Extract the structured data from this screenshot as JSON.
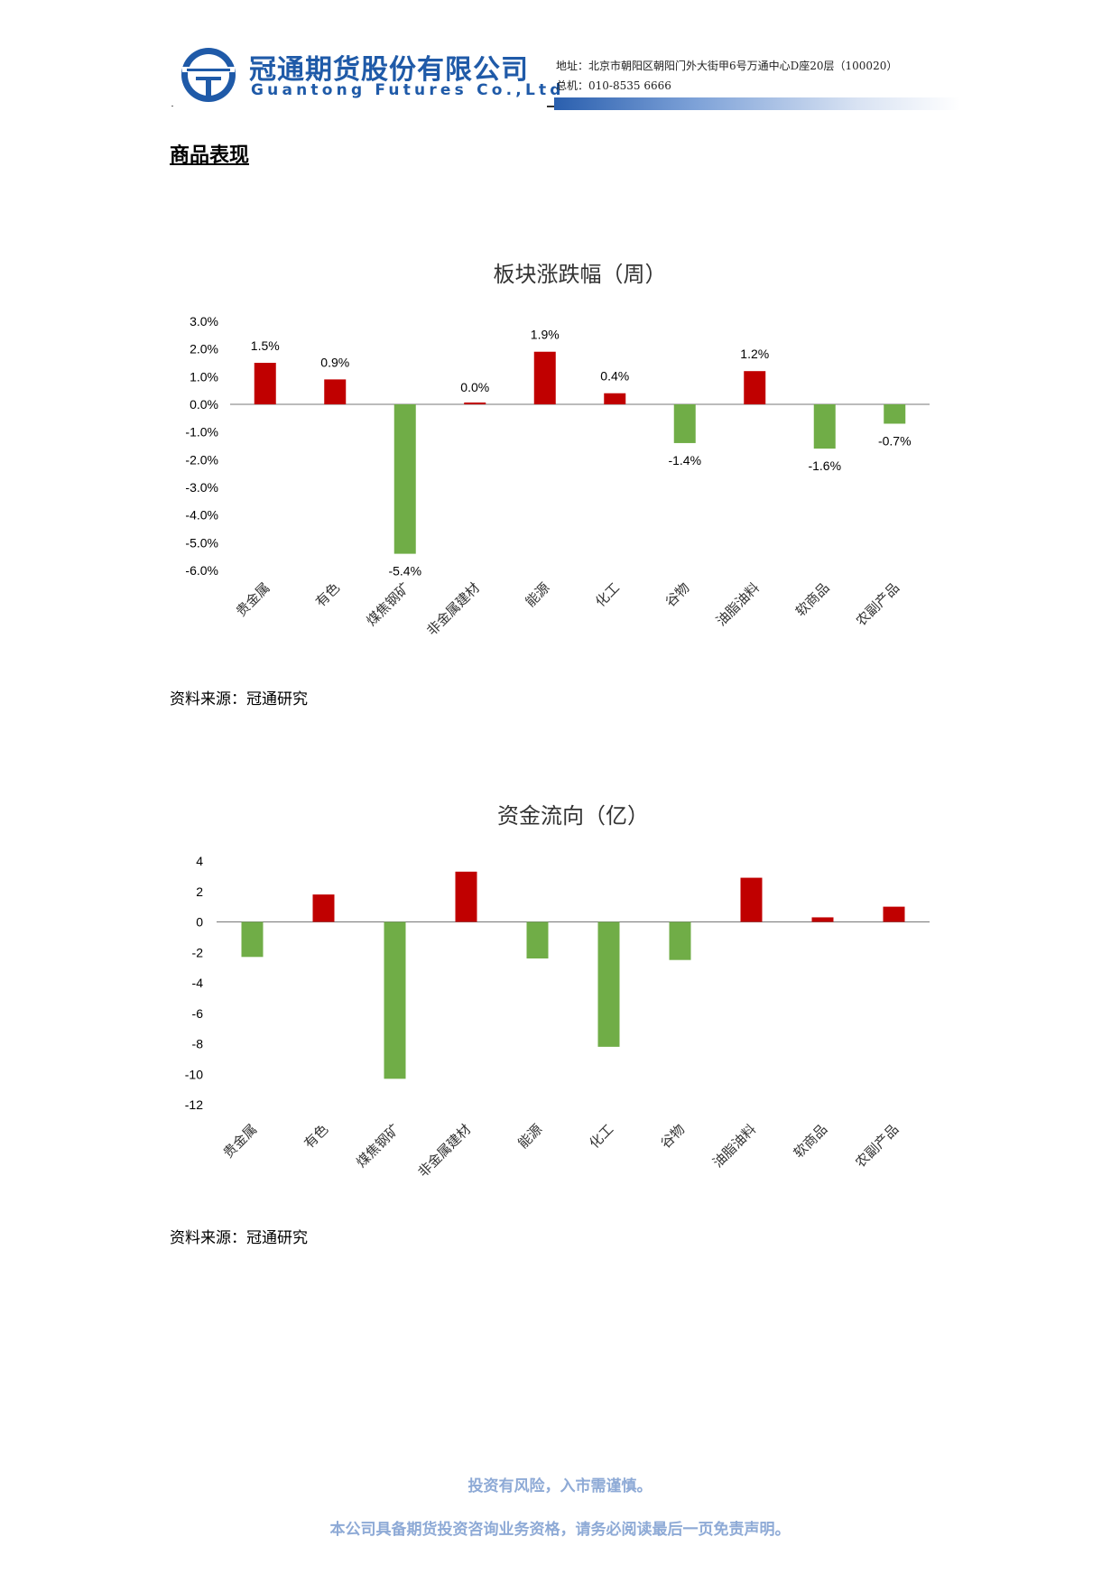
{
  "header": {
    "company_cn": "冠通期货股份有限公司",
    "company_en": "Guantong Futures Co.,Ltd",
    "address": "地址：北京市朝阳区朝阳门外大街甲6号万通中心D座20层（100020）",
    "phone": "总机：010-8535 6666",
    "brand_color": "#1f5aa8"
  },
  "section_title": "商品表现",
  "chart_data": [
    {
      "type": "bar",
      "title": "板块涨跌幅（周）",
      "categories": [
        "贵金属",
        "有色",
        "煤焦钢矿",
        "非金属建材",
        "能源",
        "化工",
        "谷物",
        "油脂油料",
        "软商品",
        "农副产品"
      ],
      "values": [
        1.5,
        0.9,
        -5.4,
        0.0,
        1.9,
        0.4,
        -1.4,
        1.2,
        -1.6,
        -0.7
      ],
      "data_labels": [
        "1.5%",
        "0.9%",
        "-5.4%",
        "0.0%",
        "1.9%",
        "0.4%",
        "-1.4%",
        "1.2%",
        "-1.6%",
        "-0.7%"
      ],
      "y_ticks": [
        "3.0%",
        "2.0%",
        "1.0%",
        "0.0%",
        "-1.0%",
        "-2.0%",
        "-3.0%",
        "-4.0%",
        "-5.0%",
        "-6.0%"
      ],
      "ylim": [
        -6.0,
        3.0
      ],
      "positive_color": "#c00000",
      "negative_color": "#70ad47",
      "grid": false,
      "legend": "none"
    },
    {
      "type": "bar",
      "title": "资金流向（亿）",
      "categories": [
        "贵金属",
        "有色",
        "煤焦钢矿",
        "非金属建材",
        "能源",
        "化工",
        "谷物",
        "油脂油料",
        "软商品",
        "农副产品"
      ],
      "values": [
        -2.3,
        1.8,
        -10.3,
        3.3,
        -2.4,
        -8.2,
        -2.5,
        2.9,
        0.3,
        1.0
      ],
      "y_ticks": [
        "4",
        "2",
        "0",
        "-2",
        "-4",
        "-6",
        "-8",
        "-10",
        "-12"
      ],
      "ylim": [
        -12,
        4
      ],
      "positive_color": "#c00000",
      "negative_color": "#70ad47",
      "grid": false,
      "legend": "none"
    }
  ],
  "sources": [
    "资料来源：冠通研究",
    "资料来源：冠通研究"
  ],
  "footer": {
    "line1": "投资有风险，入市需谨慎。",
    "line2": "本公司具备期货投资咨询业务资格，请务必阅读最后一页免责声明。",
    "color": "#8eaad6"
  }
}
